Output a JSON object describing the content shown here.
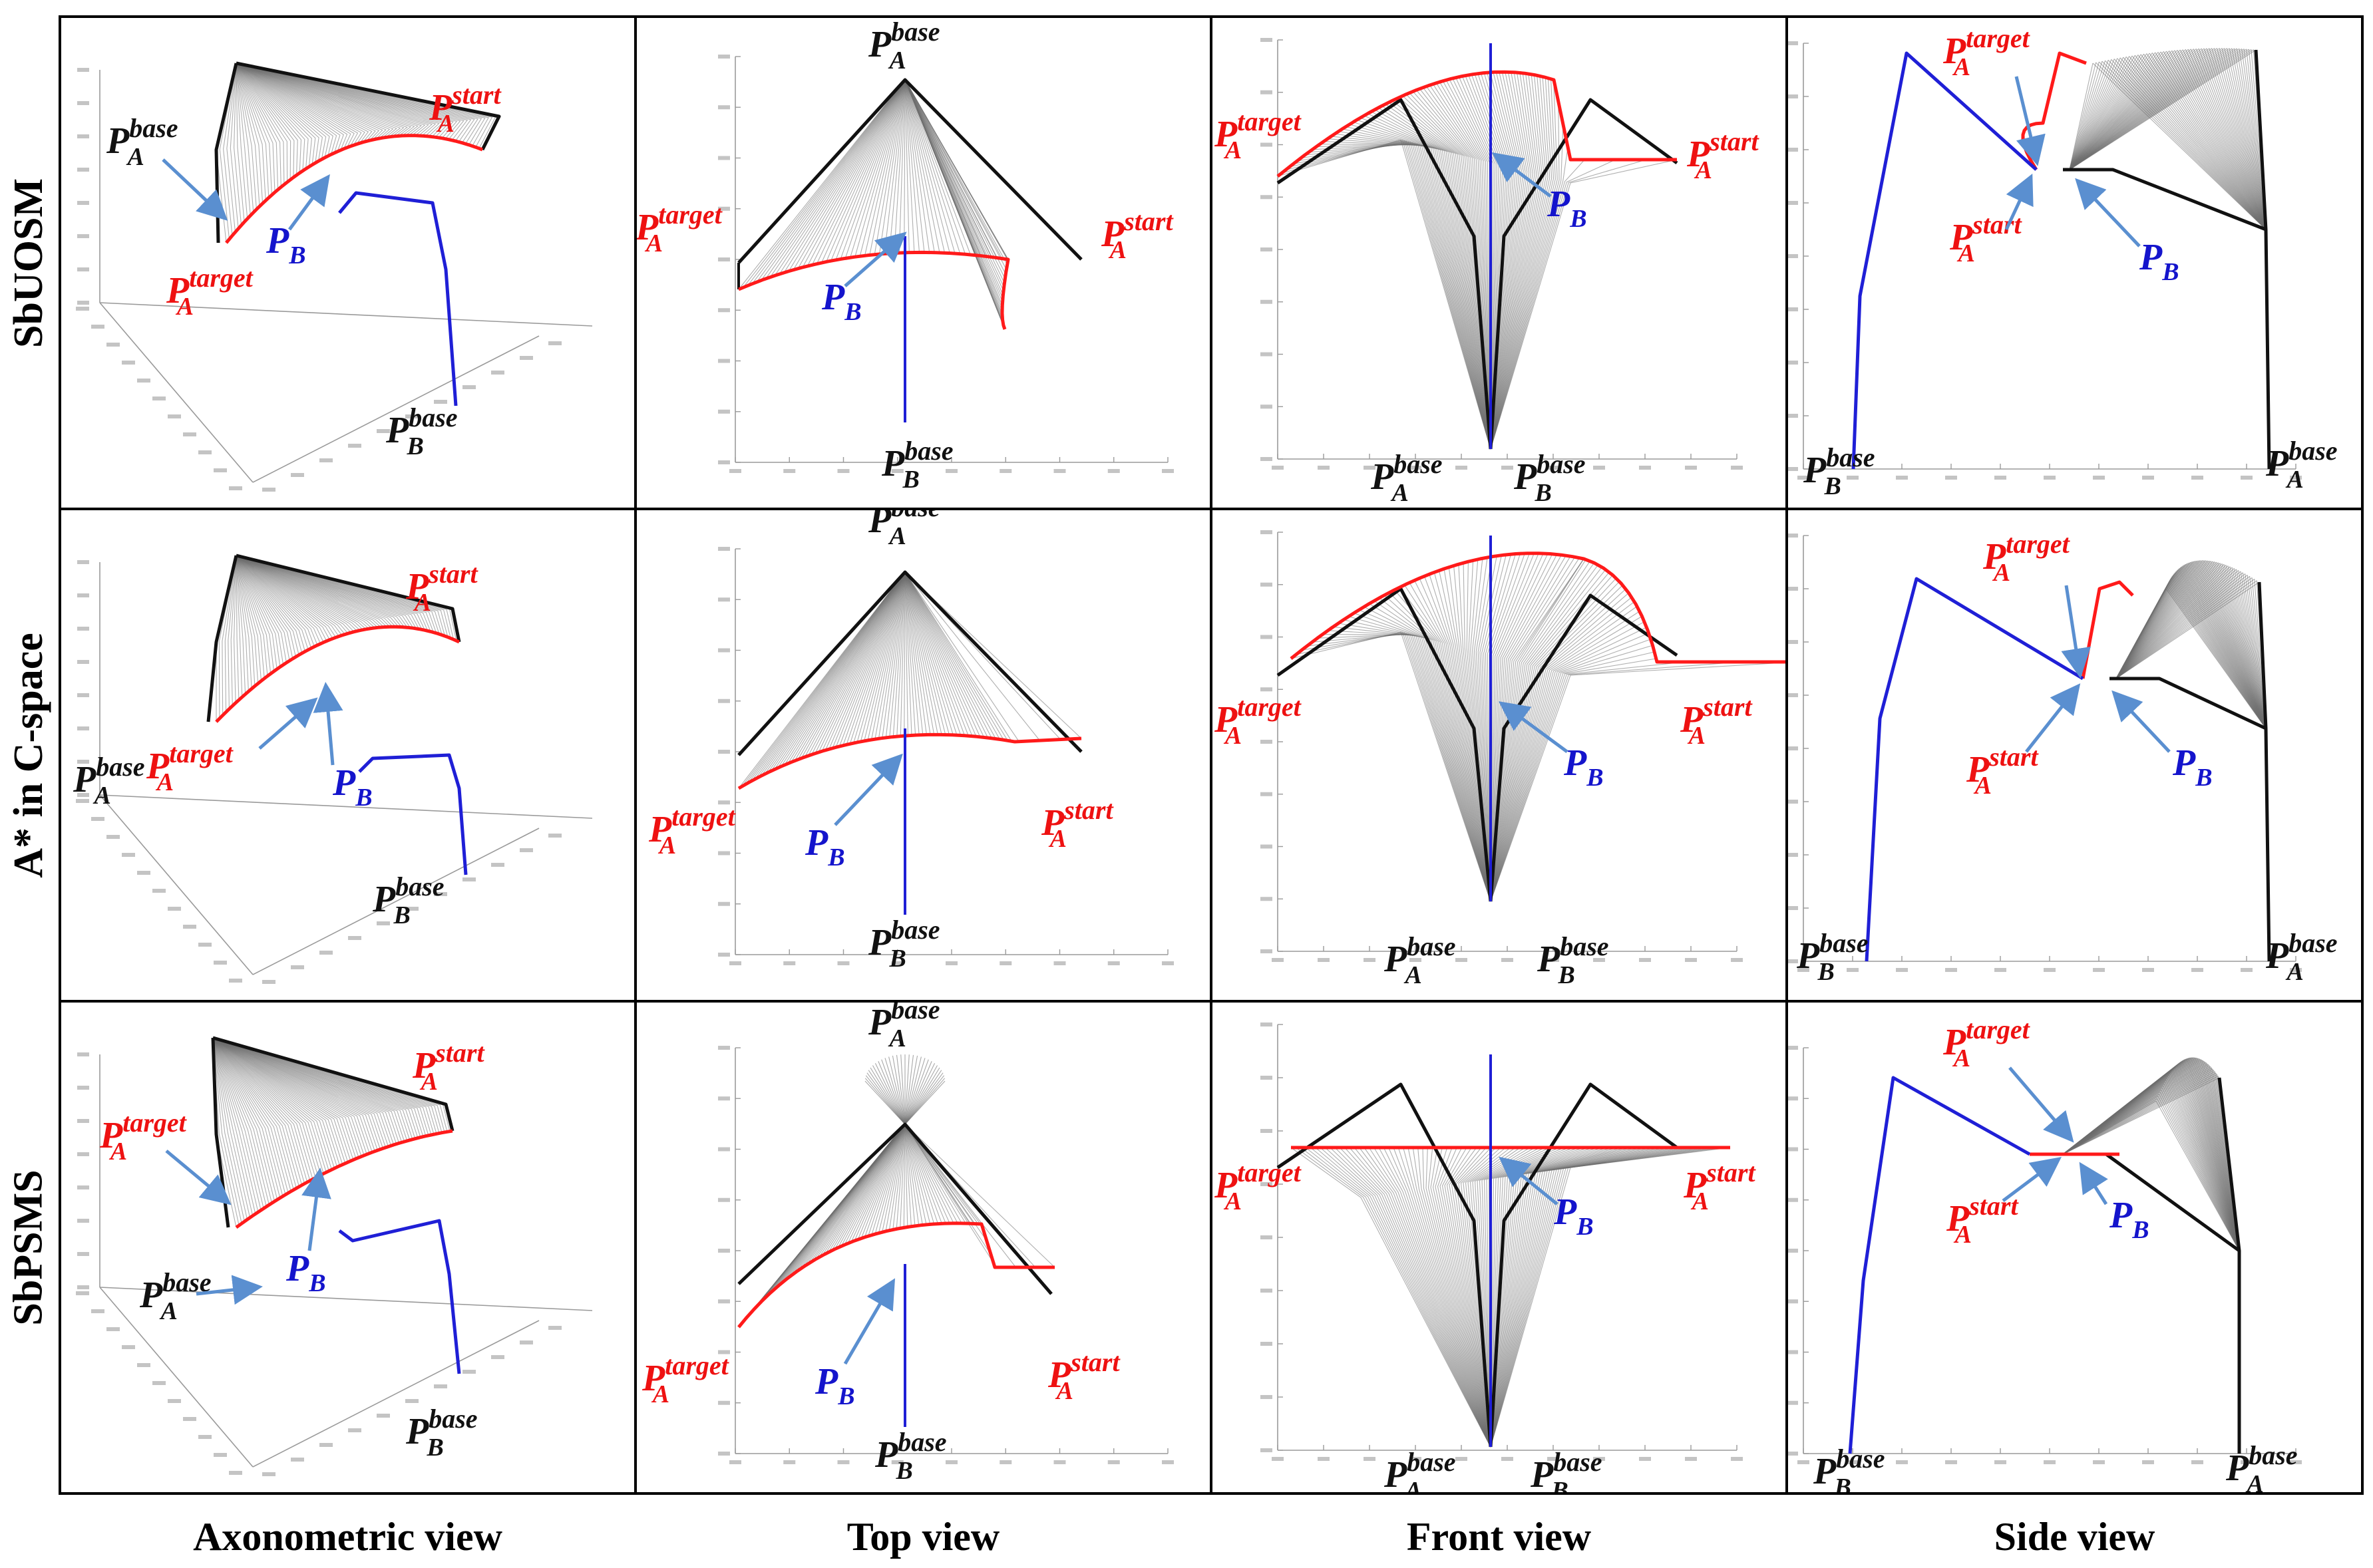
{
  "rows": [
    "SbUOSM",
    "A* in C-space",
    "SbPSMS"
  ],
  "columns": [
    "Axonometric view",
    "Top view",
    "Front view",
    "Side view"
  ],
  "symbols": {
    "p": "P",
    "a": "A",
    "b": "B",
    "base": "base",
    "start": "start",
    "target": "target"
  },
  "colors": {
    "robot_a_path": "#ff1a1a",
    "robot_b_arm": "#1f1fd6",
    "swept_links": "#6e6e6e",
    "label_black": "#111111",
    "label_red": "#ee1111",
    "label_blue": "#1414cc",
    "pointer_arrow": "#5a8fd0"
  }
}
